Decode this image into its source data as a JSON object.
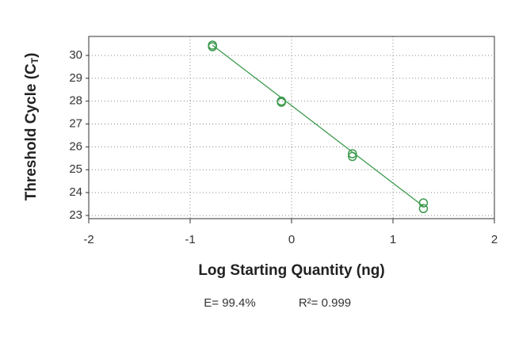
{
  "chart_data": {
    "type": "scatter",
    "xlabel": "Log Starting Quantity (ng)",
    "ylabel": {
      "main": "Threshold Cycle (C",
      "sub": "T",
      "close": ")"
    },
    "series": [
      {
        "color": "#3d9a4e",
        "x": [
          -0.78,
          -0.78,
          -0.1,
          -0.1,
          0.6,
          0.6,
          1.3,
          1.3
        ],
        "values": [
          30.45,
          30.38,
          28.0,
          27.95,
          25.7,
          25.58,
          23.55,
          23.3
        ]
      }
    ],
    "trendline": {
      "x": [
        -0.78,
        1.3
      ],
      "y": [
        30.45,
        23.4
      ],
      "color": "#3d9a4e"
    },
    "xlim": [
      -2,
      2
    ],
    "xticks": [
      -2,
      -1,
      0,
      1,
      2
    ],
    "ylim": [
      22.86,
      30.83
    ],
    "yticks": [
      23,
      24,
      25,
      26,
      27,
      28,
      29,
      30
    ],
    "grid": true,
    "annotations": [
      "E= 99.4%",
      "R²= 0.999"
    ]
  }
}
